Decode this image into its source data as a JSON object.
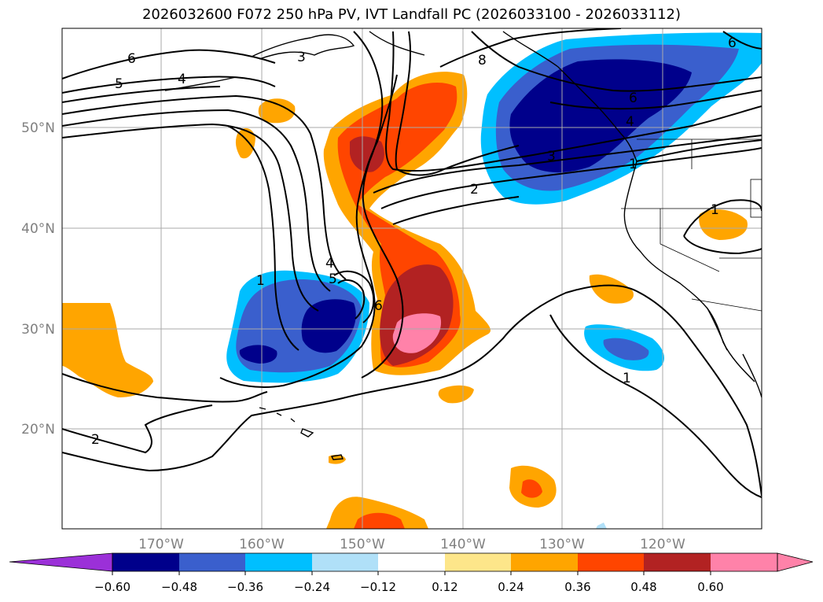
{
  "title": "2026032600 F072 250 hPa PV, IVT Landfall PC (2026033100 - 2026033112)",
  "map": {
    "lon_labels": [
      "170°W",
      "160°W",
      "150°W",
      "140°W",
      "130°W",
      "120°W"
    ],
    "lat_labels": [
      "50°N",
      "40°N",
      "30°N",
      "20°N"
    ],
    "contour_labels": [
      "6",
      "5",
      "4",
      "3",
      "8",
      "6",
      "4",
      "3",
      "2",
      "1",
      "4",
      "5",
      "6",
      "1",
      "1",
      "1",
      "2",
      "6"
    ],
    "colors": {
      "grid": "#aaaaaa",
      "axis_label": "#808080",
      "coast": "#000000"
    }
  },
  "colorbar": {
    "ticks": [
      "−0.60",
      "−0.48",
      "−0.36",
      "−0.24",
      "−0.12",
      "0.12",
      "0.24",
      "0.36",
      "0.48",
      "0.60"
    ],
    "colors": [
      "#9b30d8",
      "#00008b",
      "#3a5fcd",
      "#00bfff",
      "#b0e0f8",
      "#ffffff",
      "#fde68a",
      "#ffa500",
      "#ff4500",
      "#b22222",
      "#ff82a9"
    ]
  }
}
